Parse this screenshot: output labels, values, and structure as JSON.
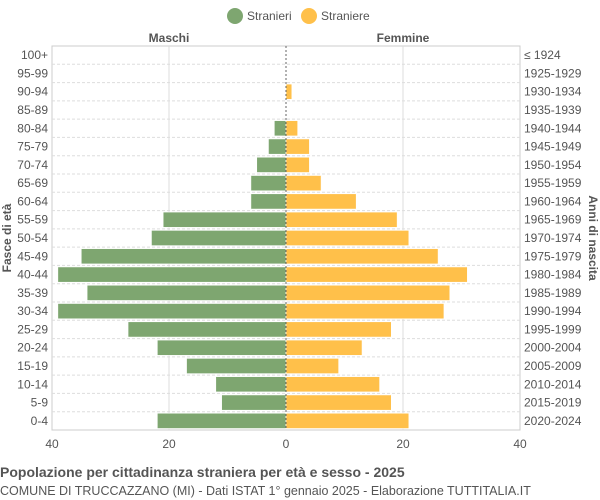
{
  "chart_data": {
    "type": "bar",
    "orientation": "horizontal-pyramid",
    "legend": {
      "placement": "top",
      "entries": [
        "Stranieri",
        "Straniere"
      ]
    },
    "left_label": "Maschi",
    "right_label": "Femmine",
    "ylabel_left": "Fasce di età",
    "ylabel_right": "Anni di nascita",
    "xlim": [
      -40,
      40
    ],
    "x_ticks": [
      "40",
      "20",
      "0",
      "20",
      "40"
    ],
    "grid": true,
    "categories": [
      "100+",
      "95-99",
      "90-94",
      "85-89",
      "80-84",
      "75-79",
      "70-74",
      "65-69",
      "60-64",
      "55-59",
      "50-54",
      "45-49",
      "40-44",
      "35-39",
      "30-34",
      "25-29",
      "20-24",
      "15-19",
      "10-14",
      "5-9",
      "0-4"
    ],
    "birth_years": [
      "≤ 1924",
      "1925-1929",
      "1930-1934",
      "1935-1939",
      "1940-1944",
      "1945-1949",
      "1950-1954",
      "1955-1959",
      "1960-1964",
      "1965-1969",
      "1970-1974",
      "1975-1979",
      "1980-1984",
      "1985-1989",
      "1990-1994",
      "1995-1999",
      "2000-2004",
      "2005-2009",
      "2010-2014",
      "2015-2019",
      "2020-2024"
    ],
    "series": [
      {
        "name": "Stranieri",
        "color": "#7ea670",
        "values": [
          0,
          0,
          0,
          0,
          2,
          3,
          5,
          6,
          6,
          21,
          23,
          35,
          39,
          34,
          39,
          27,
          22,
          17,
          12,
          11,
          22
        ]
      },
      {
        "name": "Straniere",
        "color": "#ffc04a",
        "values": [
          0,
          0,
          1,
          0,
          2,
          4,
          4,
          6,
          12,
          19,
          21,
          26,
          31,
          28,
          27,
          18,
          13,
          9,
          16,
          18,
          21
        ]
      }
    ]
  },
  "footer": {
    "title": "Popolazione per cittadinanza straniera per età e sesso - 2025",
    "subtitle": "COMUNE DI TRUCCAZZANO (MI) - Dati ISTAT 1° gennaio 2025 - Elaborazione TUTTITALIA.IT"
  }
}
